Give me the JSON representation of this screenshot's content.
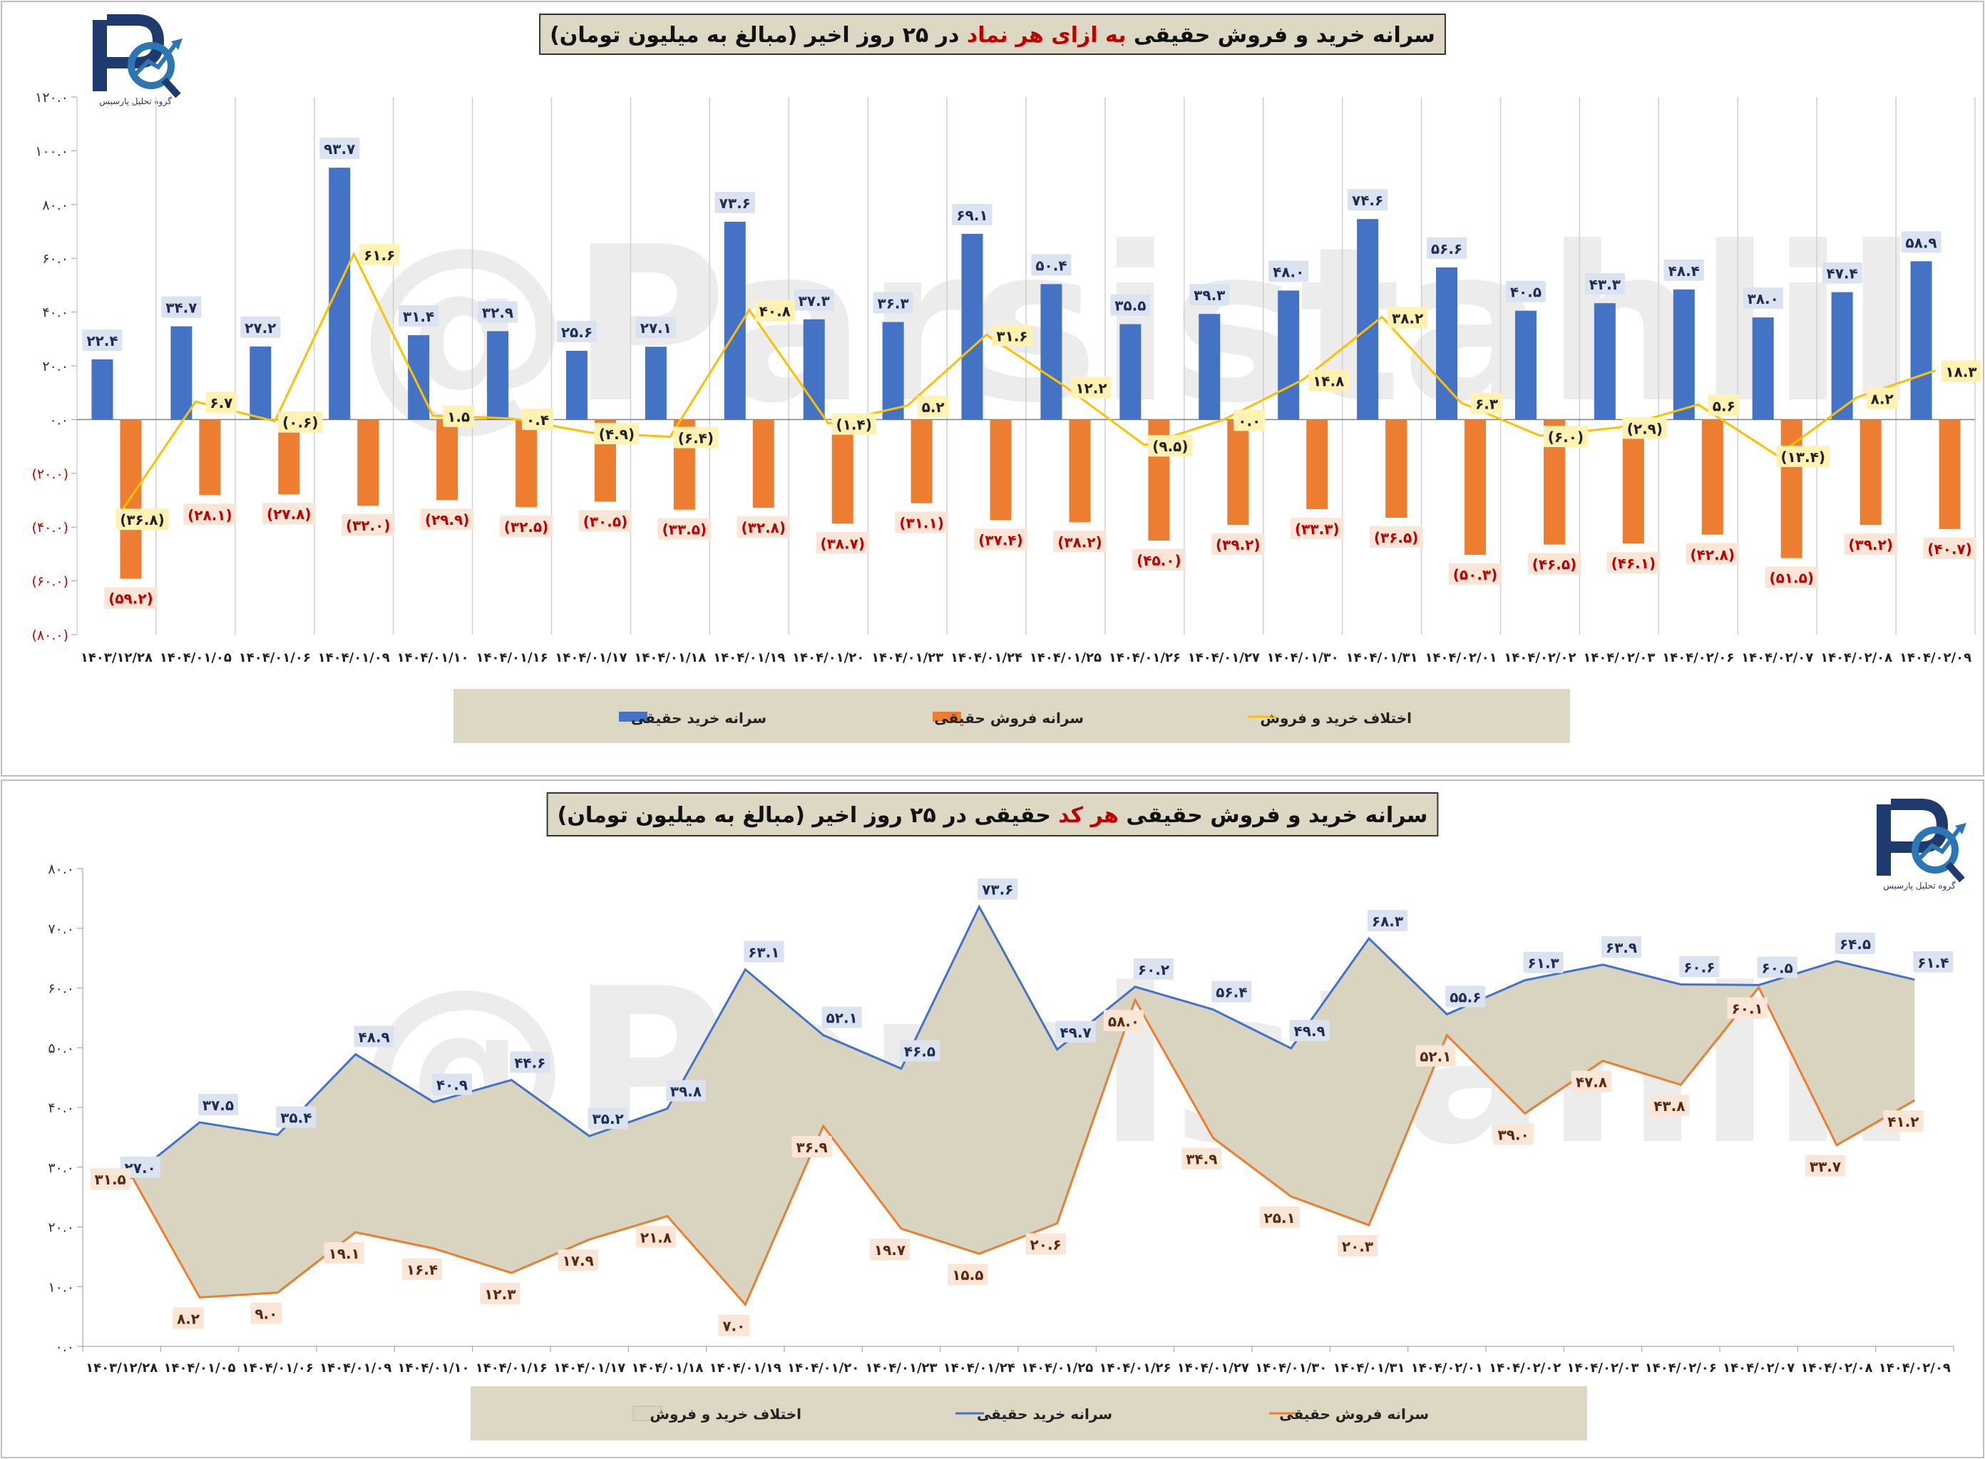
{
  "watermark": "@Parsistahlil",
  "logo": {
    "text": "گروه تحلیل پارسیس"
  },
  "dates": [
    "۱۴۰۳/۱۲/۲۸",
    "۱۴۰۴/۰۱/۰۵",
    "۱۴۰۴/۰۱/۰۶",
    "۱۴۰۴/۰۱/۰۹",
    "۱۴۰۴/۰۱/۱۰",
    "۱۴۰۴/۰۱/۱۶",
    "۱۴۰۴/۰۱/۱۷",
    "۱۴۰۴/۰۱/۱۸",
    "۱۴۰۴/۰۱/۱۹",
    "۱۴۰۴/۰۱/۲۰",
    "۱۴۰۴/۰۱/۲۳",
    "۱۴۰۴/۰۱/۲۴",
    "۱۴۰۴/۰۱/۲۵",
    "۱۴۰۴/۰۱/۲۶",
    "۱۴۰۴/۰۱/۲۷",
    "۱۴۰۴/۰۱/۳۰",
    "۱۴۰۴/۰۱/۳۱",
    "۱۴۰۴/۰۲/۰۱",
    "۱۴۰۴/۰۲/۰۲",
    "۱۴۰۴/۰۲/۰۳",
    "۱۴۰۴/۰۲/۰۶",
    "۱۴۰۴/۰۲/۰۷",
    "۱۴۰۴/۰۲/۰۸",
    "۱۴۰۴/۰۲/۰۹"
  ],
  "chart_data": [
    {
      "type": "bar",
      "title_parts": [
        {
          "text": "سرانه خرید و فروش حقیقی ",
          "color": "#111111"
        },
        {
          "text": "به ازای هر نماد",
          "color": "#c00000"
        },
        {
          "text": " در ۲۵ روز اخیر (مبالغ به میلیون تومان)",
          "color": "#111111"
        }
      ],
      "ylim": [
        -80,
        120
      ],
      "yticks": [
        -80,
        -60,
        -40,
        -20,
        0,
        20,
        40,
        60,
        80,
        100,
        120
      ],
      "ytick_labels": [
        "(۸۰.۰)",
        "(۶۰.۰)",
        "(۴۰.۰)",
        "(۲۰.۰)",
        "۰.۰",
        "۲۰.۰",
        "۴۰.۰",
        "۶۰.۰",
        "۸۰.۰",
        "۱۰۰.۰",
        "۱۲۰.۰"
      ],
      "series": [
        {
          "name": "سرانه خرید حقیقی",
          "kind": "bar",
          "color": "#4472c4",
          "values": [
            22.4,
            34.7,
            27.2,
            93.7,
            31.4,
            32.9,
            25.6,
            27.1,
            73.6,
            37.3,
            36.3,
            69.1,
            50.4,
            35.5,
            39.3,
            48.0,
            74.6,
            56.6,
            40.5,
            43.3,
            48.4,
            38.0,
            47.4,
            58.9
          ],
          "labels": [
            "۲۲.۴",
            "۳۴.۷",
            "۲۷.۲",
            "۹۳.۷",
            "۳۱.۴",
            "۳۲.۹",
            "۲۵.۶",
            "۲۷.۱",
            "۷۳.۶",
            "۳۷.۳",
            "۳۶.۳",
            "۶۹.۱",
            "۵۰.۴",
            "۳۵.۵",
            "۳۹.۳",
            "۴۸.۰",
            "۷۴.۶",
            "۵۶.۶",
            "۴۰.۵",
            "۴۳.۳",
            "۴۸.۴",
            "۳۸.۰",
            "۴۷.۴",
            "۵۸.۹"
          ]
        },
        {
          "name": "سرانه فروش حقیقی",
          "kind": "bar",
          "color": "#ed7d31",
          "values": [
            -59.2,
            -28.1,
            -27.8,
            -32.0,
            -29.9,
            -32.5,
            -30.5,
            -33.5,
            -32.8,
            -38.7,
            -31.1,
            -37.4,
            -38.2,
            -45.0,
            -39.2,
            -33.3,
            -36.5,
            -50.3,
            -46.5,
            -46.1,
            -42.8,
            -51.5,
            -39.2,
            -40.7
          ],
          "labels": [
            "(۵۹.۲)",
            "(۲۸.۱)",
            "(۲۷.۸)",
            "(۳۲.۰)",
            "(۲۹.۹)",
            "(۳۲.۵)",
            "(۳۰.۵)",
            "(۳۳.۵)",
            "(۳۲.۸)",
            "(۳۸.۷)",
            "(۳۱.۱)",
            "(۳۷.۴)",
            "(۳۸.۲)",
            "(۴۵.۰)",
            "(۳۹.۲)",
            "(۳۳.۳)",
            "(۳۶.۵)",
            "(۵۰.۳)",
            "(۴۶.۵)",
            "(۴۶.۱)",
            "(۴۲.۸)",
            "(۵۱.۵)",
            "(۳۹.۲)",
            "(۴۰.۷)"
          ]
        },
        {
          "name": "اختلاف خرید و فروش",
          "kind": "line",
          "color": "#ffc000",
          "values": [
            -36.8,
            6.7,
            -0.6,
            61.6,
            1.5,
            0.4,
            -4.9,
            -6.4,
            40.8,
            -1.4,
            5.2,
            31.6,
            12.2,
            -9.5,
            0.0,
            14.8,
            38.2,
            6.3,
            -6.0,
            -2.9,
            5.6,
            -13.4,
            8.2,
            18.3
          ],
          "labels": [
            "(۳۶.۸)",
            "۶.۷",
            "(۰.۶)",
            "۶۱.۶",
            "۱.۵",
            "۰.۴",
            "(۴.۹)",
            "(۶.۴)",
            "۴۰.۸",
            "(۱.۴)",
            "۵.۲",
            "۳۱.۶",
            "۱۲.۲",
            "(۹.۵)",
            "۰.۰",
            "۱۴.۸",
            "۳۸.۲",
            "۶.۳",
            "(۶.۰)",
            "(۲.۹)",
            "۵.۶",
            "(۱۳.۴)",
            "۸.۲",
            "۱۸.۳"
          ]
        }
      ]
    },
    {
      "type": "area",
      "title_parts": [
        {
          "text": "سرانه خرید و فروش حقیقی ",
          "color": "#111111"
        },
        {
          "text": "هر کد",
          "color": "#c00000"
        },
        {
          "text": " حقیقی در ۲۵ روز اخیر (مبالغ به میلیون تومان)",
          "color": "#111111"
        }
      ],
      "ylim": [
        0,
        80
      ],
      "yticks": [
        0,
        10,
        20,
        30,
        40,
        50,
        60,
        70,
        80
      ],
      "ytick_labels": [
        "۰.۰",
        "۱۰.۰",
        "۲۰.۰",
        "۳۰.۰",
        "۴۰.۰",
        "۵۰.۰",
        "۶۰.۰",
        "۷۰.۰",
        "۸۰.۰"
      ],
      "area_name": "اختلاف خرید و فروش",
      "area_color": "#d9d4c0",
      "series": [
        {
          "name": "سرانه خرید حقیقی",
          "kind": "line",
          "color": "#4472c4",
          "values": [
            27.0,
            37.5,
            35.4,
            48.9,
            40.9,
            44.6,
            35.2,
            39.8,
            63.1,
            52.1,
            46.5,
            73.6,
            49.7,
            60.2,
            56.4,
            49.9,
            68.3,
            55.6,
            61.3,
            63.9,
            60.6,
            60.5,
            64.5,
            61.4
          ],
          "labels": [
            "۲۷.۰",
            "۳۷.۵",
            "۳۵.۴",
            "۴۸.۹",
            "۴۰.۹",
            "۴۴.۶",
            "۳۵.۲",
            "۳۹.۸",
            "۶۳.۱",
            "۵۲.۱",
            "۴۶.۵",
            "۷۳.۶",
            "۴۹.۷",
            "۶۰.۲",
            "۵۶.۴",
            "۴۹.۹",
            "۶۸.۳",
            "۵۵.۶",
            "۶۱.۳",
            "۶۳.۹",
            "۶۰.۶",
            "۶۰.۵",
            "۶۴.۵",
            "۶۱.۴"
          ]
        },
        {
          "name": "سرانه فروش حقیقی",
          "kind": "line",
          "color": "#ed7d31",
          "values": [
            31.5,
            8.2,
            9.0,
            19.1,
            16.4,
            12.3,
            17.9,
            21.8,
            7.0,
            36.9,
            19.7,
            15.5,
            20.6,
            58.0,
            34.9,
            25.1,
            20.3,
            52.1,
            39.0,
            47.8,
            43.8,
            60.1,
            33.7,
            41.2
          ],
          "labels": [
            "۳۱.۵",
            "۸.۲",
            "۹.۰",
            "۱۹.۱",
            "۱۶.۴",
            "۱۲.۳",
            "۱۷.۹",
            "۲۱.۸",
            "۷.۰",
            "۳۶.۹",
            "۱۹.۷",
            "۱۵.۵",
            "۲۰.۶",
            "۵۸.۰",
            "۳۴.۹",
            "۲۵.۱",
            "۲۰.۳",
            "۵۲.۱",
            "۳۹.۰",
            "۴۷.۸",
            "۴۳.۸",
            "۶۰.۱",
            "۳۳.۷",
            "۴۱.۲"
          ]
        }
      ]
    }
  ]
}
